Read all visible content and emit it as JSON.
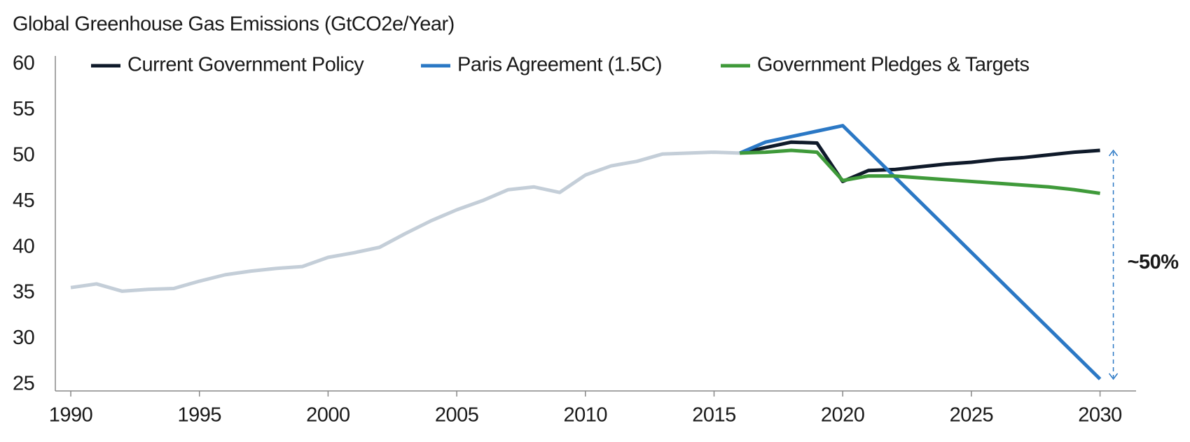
{
  "chart_data": {
    "type": "line",
    "title": "Global Greenhouse Gas Emissions (GtCO2e/Year)",
    "x": [
      1990,
      1991,
      1992,
      1993,
      1994,
      1995,
      1996,
      1997,
      1998,
      1999,
      2000,
      2001,
      2002,
      2003,
      2004,
      2005,
      2006,
      2007,
      2008,
      2009,
      2010,
      2011,
      2012,
      2013,
      2014,
      2015,
      2016,
      2017,
      2018,
      2019,
      2020,
      2021,
      2022,
      2023,
      2024,
      2025,
      2026,
      2027,
      2028,
      2029,
      2030
    ],
    "history": {
      "color": "#c4ced8",
      "values": [
        35.6,
        36.0,
        35.2,
        35.4,
        35.5,
        36.3,
        37.0,
        37.4,
        37.7,
        37.9,
        38.9,
        39.4,
        40.0,
        41.5,
        42.9,
        44.1,
        45.1,
        46.3,
        46.6,
        46.0,
        47.9,
        48.9,
        49.4,
        50.2,
        50.3,
        50.4,
        50.3,
        null,
        null,
        null,
        null,
        null,
        null,
        null,
        null,
        null,
        null,
        null,
        null,
        null,
        null
      ]
    },
    "series": [
      {
        "name": "Current Government Policy",
        "color": "#0f1a2a",
        "values": [
          null,
          null,
          null,
          null,
          null,
          null,
          null,
          null,
          null,
          null,
          null,
          null,
          null,
          null,
          null,
          null,
          null,
          null,
          null,
          null,
          null,
          null,
          null,
          null,
          null,
          null,
          50.3,
          50.9,
          51.5,
          51.4,
          47.2,
          48.4,
          48.5,
          48.8,
          49.1,
          49.3,
          49.6,
          49.8,
          50.1,
          50.4,
          50.6
        ]
      },
      {
        "name": "Paris Agreement (1.5C)",
        "color": "#2b78c5",
        "values": [
          null,
          null,
          null,
          null,
          null,
          null,
          null,
          null,
          null,
          null,
          null,
          null,
          null,
          null,
          null,
          null,
          null,
          null,
          null,
          null,
          null,
          null,
          null,
          null,
          null,
          null,
          50.3,
          51.5,
          52.1,
          52.7,
          53.3,
          50.53,
          47.76,
          44.99,
          42.22,
          39.45,
          36.68,
          33.91,
          31.14,
          28.37,
          25.6
        ]
      },
      {
        "name": "Government Pledges & Targets",
        "color": "#3f9a3a",
        "values": [
          null,
          null,
          null,
          null,
          null,
          null,
          null,
          null,
          null,
          null,
          null,
          null,
          null,
          null,
          null,
          null,
          null,
          null,
          null,
          null,
          null,
          null,
          null,
          null,
          null,
          null,
          50.3,
          50.4,
          50.6,
          50.4,
          47.3,
          47.8,
          47.8,
          47.6,
          47.4,
          47.2,
          47.0,
          46.8,
          46.6,
          46.3,
          45.9
        ]
      }
    ],
    "annotation": "~50%",
    "annotation_color": "#2b78c5",
    "xlim": [
      1989.4,
      2031.4
    ],
    "xticks": [
      1990,
      1995,
      2000,
      2005,
      2010,
      2015,
      2020,
      2025,
      2030
    ],
    "ylim": [
      24.3,
      60
    ],
    "yticks": [
      25,
      30,
      35,
      40,
      45,
      50,
      55,
      60
    ]
  }
}
